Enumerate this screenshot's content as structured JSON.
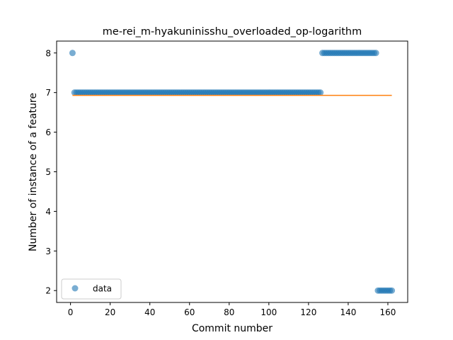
{
  "chart_data": {
    "type": "scatter",
    "title": "me-rei_m-hyakuninisshu_overloaded_op-logarithm",
    "xlabel": "Commit number",
    "ylabel": "Number of instance of a feature",
    "xlim": [
      -7,
      170
    ],
    "ylim": [
      1.7,
      8.3
    ],
    "xticks": [
      0,
      20,
      40,
      60,
      80,
      100,
      120,
      140,
      160
    ],
    "yticks": [
      2,
      3,
      4,
      5,
      6,
      7,
      8
    ],
    "grid": false,
    "legend_position": "lower-left",
    "series": [
      {
        "name": "data",
        "kind": "points",
        "color": "#1f77b4",
        "segments": [
          {
            "x_start": 1,
            "x_end": 1,
            "y": 8
          },
          {
            "x_start": 2,
            "x_end": 126,
            "y": 7
          },
          {
            "x_start": 127,
            "x_end": 154,
            "y": 8
          },
          {
            "x_start": 155,
            "x_end": 162,
            "y": 2
          }
        ]
      },
      {
        "kind": "line",
        "color": "#ff7f0e",
        "x": [
          1,
          162
        ],
        "y": [
          6.93,
          6.93
        ]
      }
    ]
  }
}
